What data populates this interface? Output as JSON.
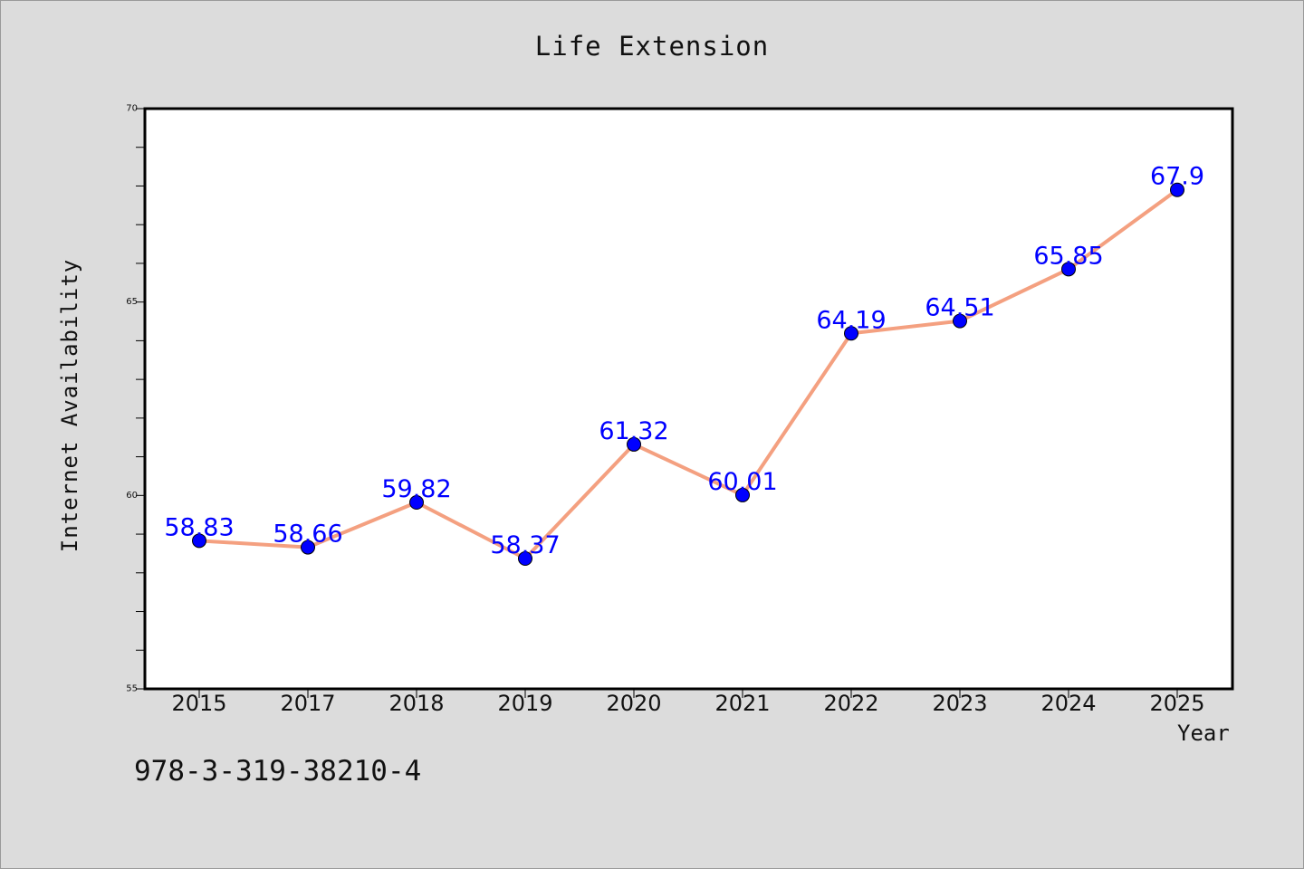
{
  "chart_data": {
    "type": "line",
    "title": "Life Extension",
    "xlabel": "Year",
    "ylabel": "Internet Availability",
    "categories": [
      "2015",
      "2017",
      "2018",
      "2019",
      "2020",
      "2021",
      "2022",
      "2023",
      "2024",
      "2025"
    ],
    "series": [
      {
        "values": [
          58.83,
          58.66,
          59.82,
          58.37,
          61.32,
          60.01,
          64.19,
          64.51,
          65.85,
          67.9
        ],
        "labels": [
          "58.83",
          "58.66",
          "59.82",
          "58.37",
          "61.32",
          "60.01",
          "64.19",
          "64.51",
          "65.85",
          "67.9"
        ],
        "line_color": "#f4a080",
        "marker_color": "#0000ff"
      }
    ],
    "ylim": [
      55,
      70
    ],
    "yticks": [
      "55",
      "60",
      "65",
      "70"
    ],
    "grid": false
  },
  "annotation": {
    "isbn": "978-3-319-38210-4"
  }
}
